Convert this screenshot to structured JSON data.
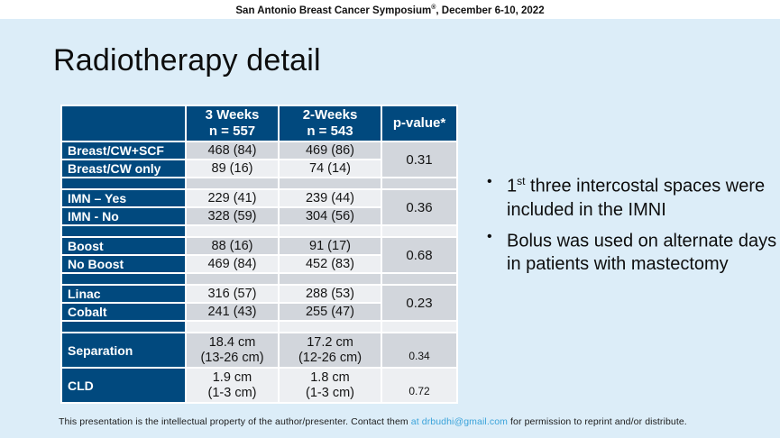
{
  "banner": {
    "part1": "San Antonio Breast Cancer Symposium",
    "reg": "®",
    "part2": ", December 6-10, 2022"
  },
  "title": "Radiotherapy detail",
  "table": {
    "header": {
      "weeks3_l1": "3 Weeks",
      "weeks3_l2": "n = 557",
      "weeks2_l1": "2-Weeks",
      "weeks2_l2": "n = 543",
      "pvalue": "p-value*"
    },
    "groups": [
      {
        "p": "0.31",
        "rows": [
          {
            "label": "Breast/CW+SCF",
            "w3": "468 (84)",
            "w2": "469 (86)"
          },
          {
            "label": "Breast/CW only",
            "w3": "89 (16)",
            "w2": "74 (14)"
          }
        ]
      },
      {
        "p": "0.36",
        "rows": [
          {
            "label": "IMN – Yes",
            "w3": "229 (41)",
            "w2": "239 (44)"
          },
          {
            "label": "IMN - No",
            "w3": "328 (59)",
            "w2": "304 (56)"
          }
        ]
      },
      {
        "p": "0.68",
        "rows": [
          {
            "label": "Boost",
            "w3": "88 (16)",
            "w2": "91 (17)"
          },
          {
            "label": "No Boost",
            "w3": "469 (84)",
            "w2": "452 (83)"
          }
        ]
      },
      {
        "p": "0.23",
        "rows": [
          {
            "label": "Linac",
            "w3": "316 (57)",
            "w2": "288 (53)"
          },
          {
            "label": "Cobalt",
            "w3": "241 (43)",
            "w2": "255 (47)"
          }
        ]
      }
    ],
    "measure_rows": [
      {
        "label": "Separation",
        "w3_l1": "18.4 cm",
        "w3_l2": "(13-26 cm)",
        "w2_l1": "17.2 cm",
        "w2_l2": "(12-26 cm)",
        "p": "0.34"
      },
      {
        "label": "CLD",
        "w3_l1": "1.9 cm",
        "w3_l2": "(1-3 cm)",
        "w2_l1": "1.8 cm",
        "w2_l2": "(1-3 cm)",
        "p": "0.72"
      }
    ]
  },
  "bullets": [
    {
      "pre": "1",
      "sup": "st",
      "text": " three intercostal spaces were included in the IMNI"
    },
    {
      "pre": "",
      "sup": "",
      "text": "Bolus was used on alternate days in patients with mastectomy"
    }
  ],
  "footer": {
    "text1": "This presentation is the intellectual property of the author/presenter. Contact them",
    "link": "at  drbudhi@gmail.com",
    "text2": "for permission to reprint and/or distribute."
  },
  "colors": {
    "accent_blue": "#01497e",
    "page_background": "#dcedf8",
    "row_dark": "#d2d6dc",
    "row_light": "#edeff2",
    "link_blue": "#3aa3da"
  }
}
